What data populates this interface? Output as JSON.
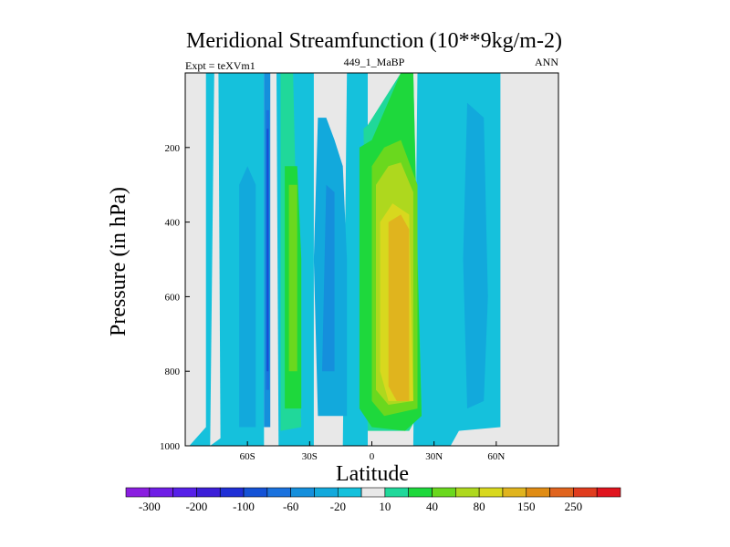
{
  "chart_data": {
    "type": "contour",
    "title": "Meridional Streamfunction (10**9kg/m-2)",
    "left_label": "Expt = teXVm1",
    "center_label": "449_1_MaBP",
    "right_label": "ANN",
    "xlabel": "Latitude",
    "ylabel": "Pressure (in hPa)",
    "xlim": [
      -90,
      90
    ],
    "ylim": [
      1000,
      0
    ],
    "x_ticks": [
      {
        "value": -60,
        "label": "60S"
      },
      {
        "value": -30,
        "label": "30S"
      },
      {
        "value": 0,
        "label": "0"
      },
      {
        "value": 30,
        "label": "30N"
      },
      {
        "value": 60,
        "label": "60N"
      }
    ],
    "y_ticks": [
      {
        "value": 200,
        "label": "200"
      },
      {
        "value": 400,
        "label": "400"
      },
      {
        "value": 600,
        "label": "600"
      },
      {
        "value": 800,
        "label": "800"
      },
      {
        "value": 1000,
        "label": "1000"
      }
    ],
    "background_color": "#e8e8e8",
    "colorbar": {
      "colors": [
        "#8a1ee0",
        "#6f1ee6",
        "#5620e8",
        "#3c1ed8",
        "#1f2fd6",
        "#1452d6",
        "#1a72de",
        "#158fdc",
        "#12a9dc",
        "#15c1dc",
        "#e8e8e8",
        "#20d89a",
        "#1ed83c",
        "#6ad81e",
        "#aed81e",
        "#d8d81e",
        "#e0b41e",
        "#e08c14",
        "#e0641e",
        "#e03c1e",
        "#e0141e"
      ],
      "labels": [
        {
          "after_index": 0,
          "text": "-300"
        },
        {
          "after_index": 2,
          "text": "-200"
        },
        {
          "after_index": 4,
          "text": "-100"
        },
        {
          "after_index": 6,
          "text": "-60"
        },
        {
          "after_index": 8,
          "text": "-20"
        },
        {
          "after_index": 10,
          "text": "10"
        },
        {
          "after_index": 12,
          "text": "40"
        },
        {
          "after_index": 14,
          "text": "80"
        },
        {
          "after_index": 16,
          "text": "150"
        },
        {
          "after_index": 18,
          "text": "250"
        }
      ]
    },
    "contours": [
      {
        "level": "-20",
        "color": "#15c1dc",
        "polygon": [
          [
            -88,
            0
          ],
          [
            -28,
            0
          ],
          [
            -28,
            1000
          ],
          [
            -88,
            1000
          ]
        ]
      },
      {
        "level": "-20",
        "color": "#15c1dc",
        "polygon": [
          [
            -12,
            0
          ],
          [
            -2,
            0
          ],
          [
            -2,
            1000
          ],
          [
            -14,
            1000
          ]
        ]
      },
      {
        "level": "-20",
        "color": "#15c1dc",
        "polygon": [
          [
            22,
            0
          ],
          [
            45,
            0
          ],
          [
            62,
            0
          ],
          [
            62,
            950
          ],
          [
            42,
            960
          ],
          [
            38,
            1000
          ],
          [
            20,
            1000
          ]
        ]
      },
      {
        "level": "10",
        "color": "#e8e8e8",
        "polygon": [
          [
            -88,
            0
          ],
          [
            -80,
            0
          ],
          [
            -80,
            950
          ],
          [
            -88,
            1000
          ]
        ]
      },
      {
        "level": "10",
        "color": "#e8e8e8",
        "polygon": [
          [
            -76,
            0
          ],
          [
            -74,
            0
          ],
          [
            -73,
            980
          ],
          [
            -78,
            1000
          ]
        ]
      },
      {
        "level": "10",
        "color": "#e8e8e8",
        "polygon": [
          [
            -52,
            0
          ],
          [
            -46,
            0
          ],
          [
            -45,
            1000
          ],
          [
            -52,
            1000
          ]
        ]
      },
      {
        "level": "-60",
        "color": "#12a9dc",
        "polygon": [
          [
            -64,
            300
          ],
          [
            -60,
            250
          ],
          [
            -56,
            300
          ],
          [
            -56,
            950
          ],
          [
            -64,
            950
          ]
        ]
      },
      {
        "level": "-60",
        "color": "#12a9dc",
        "polygon": [
          [
            -22,
            120
          ],
          [
            -18,
            180
          ],
          [
            -14,
            250
          ],
          [
            -12,
            500
          ],
          [
            -12,
            920
          ],
          [
            -26,
            920
          ],
          [
            -28,
            500
          ],
          [
            -26,
            120
          ]
        ]
      },
      {
        "level": "-60",
        "color": "#12a9dc",
        "polygon": [
          [
            46,
            80
          ],
          [
            54,
            120
          ],
          [
            56,
            600
          ],
          [
            54,
            880
          ],
          [
            46,
            900
          ],
          [
            44,
            500
          ]
        ]
      },
      {
        "level": "-100",
        "color": "#158fdc",
        "polygon": [
          [
            -22,
            300
          ],
          [
            -18,
            320
          ],
          [
            -18,
            800
          ],
          [
            -24,
            800
          ]
        ]
      },
      {
        "level": "-100",
        "color": "#158fdc",
        "polygon": [
          [
            -52,
            0
          ],
          [
            -49,
            0
          ],
          [
            -49,
            950
          ],
          [
            -52,
            950
          ]
        ]
      },
      {
        "level": "-150",
        "color": "#1a72de",
        "polygon": [
          [
            -51,
            100
          ],
          [
            -49.5,
            100
          ],
          [
            -49.5,
            850
          ],
          [
            -51,
            850
          ]
        ]
      },
      {
        "level": "-200",
        "color": "#1452d6",
        "polygon": [
          [
            -50.8,
            150
          ],
          [
            -49.8,
            150
          ],
          [
            -49.8,
            800
          ],
          [
            -50.8,
            800
          ]
        ]
      },
      {
        "level": "10+",
        "color": "#20d89a",
        "polygon": [
          [
            -44,
            0
          ],
          [
            -38,
            0
          ],
          [
            -36,
            500
          ],
          [
            -34,
            950
          ],
          [
            -44,
            960
          ]
        ]
      },
      {
        "level": "10+",
        "color": "#20d89a",
        "polygon": [
          [
            -4,
            150
          ],
          [
            -2,
            140
          ],
          [
            14,
            0
          ],
          [
            20,
            0
          ],
          [
            24,
            900
          ],
          [
            18,
            960
          ],
          [
            -2,
            960
          ]
        ]
      },
      {
        "level": "40",
        "color": "#1ed83c",
        "polygon": [
          [
            -42,
            250
          ],
          [
            -36,
            250
          ],
          [
            -34,
            500
          ],
          [
            -34,
            900
          ],
          [
            -42,
            900
          ]
        ]
      },
      {
        "level": "40",
        "color": "#1ed83c",
        "polygon": [
          [
            -6,
            200
          ],
          [
            0,
            180
          ],
          [
            14,
            0
          ],
          [
            20,
            0
          ],
          [
            22,
            500
          ],
          [
            24,
            920
          ],
          [
            16,
            960
          ],
          [
            0,
            950
          ],
          [
            -6,
            900
          ]
        ]
      },
      {
        "level": "80",
        "color": "#6ad81e",
        "polygon": [
          [
            -40,
            300
          ],
          [
            -36,
            300
          ],
          [
            -36,
            800
          ],
          [
            -40,
            800
          ]
        ]
      },
      {
        "level": "80",
        "color": "#6ad81e",
        "polygon": [
          [
            0,
            250
          ],
          [
            6,
            200
          ],
          [
            14,
            180
          ],
          [
            22,
            300
          ],
          [
            22,
            900
          ],
          [
            6,
            920
          ],
          [
            0,
            880
          ]
        ]
      },
      {
        "level": "120",
        "color": "#aed81e",
        "polygon": [
          [
            2,
            300
          ],
          [
            8,
            250
          ],
          [
            14,
            240
          ],
          [
            20,
            320
          ],
          [
            20,
            880
          ],
          [
            8,
            890
          ],
          [
            2,
            850
          ]
        ]
      },
      {
        "level": "150",
        "color": "#d8d81e",
        "polygon": [
          [
            4,
            400
          ],
          [
            10,
            350
          ],
          [
            18,
            380
          ],
          [
            20,
            880
          ],
          [
            8,
            880
          ],
          [
            4,
            800
          ]
        ]
      },
      {
        "level": "200",
        "color": "#e0b41e",
        "polygon": [
          [
            8,
            400
          ],
          [
            14,
            380
          ],
          [
            18,
            420
          ],
          [
            18,
            880
          ],
          [
            12,
            880
          ],
          [
            8,
            840
          ]
        ]
      }
    ]
  }
}
